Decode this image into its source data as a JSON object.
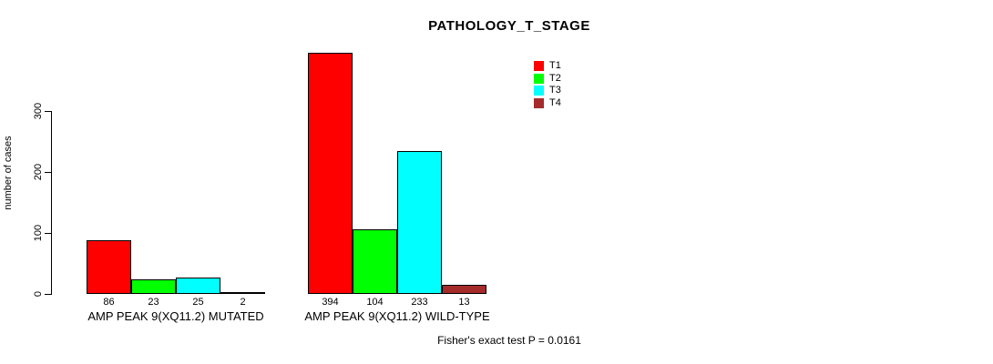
{
  "chart_data": {
    "type": "bar",
    "title": "PATHOLOGY_T_STAGE",
    "xlabel": "",
    "ylabel": "number of cases",
    "yticks": [
      0,
      100,
      200,
      300
    ],
    "ylim": [
      0,
      400
    ],
    "grid": false,
    "legend_position": "top-right-inside",
    "categories": [
      "AMP PEAK 9(XQ11.2) MUTATED",
      "AMP PEAK 9(XQ11.2) WILD-TYPE"
    ],
    "series": [
      {
        "name": "T1",
        "color": "#FF0000",
        "values": [
          86,
          394
        ]
      },
      {
        "name": "T2",
        "color": "#00FF00",
        "values": [
          23,
          104
        ]
      },
      {
        "name": "T3",
        "color": "#00FFFF",
        "values": [
          25,
          233
        ]
      },
      {
        "name": "T4",
        "color": "#A52A2A",
        "values": [
          2,
          13
        ]
      }
    ],
    "groups": [
      {
        "label": "AMP PEAK 9(XQ11.2) MUTATED",
        "values": [
          86,
          23,
          25,
          2
        ]
      },
      {
        "label": "AMP PEAK 9(XQ11.2) WILD-TYPE",
        "values": [
          394,
          104,
          233,
          13
        ]
      }
    ],
    "bar_border_color": "#000000"
  },
  "footer": {
    "note": "Fisher's exact test P = 0.0161"
  },
  "colors": {
    "background": "#FFFFFF",
    "axis": "#000000",
    "text": "#000000"
  }
}
